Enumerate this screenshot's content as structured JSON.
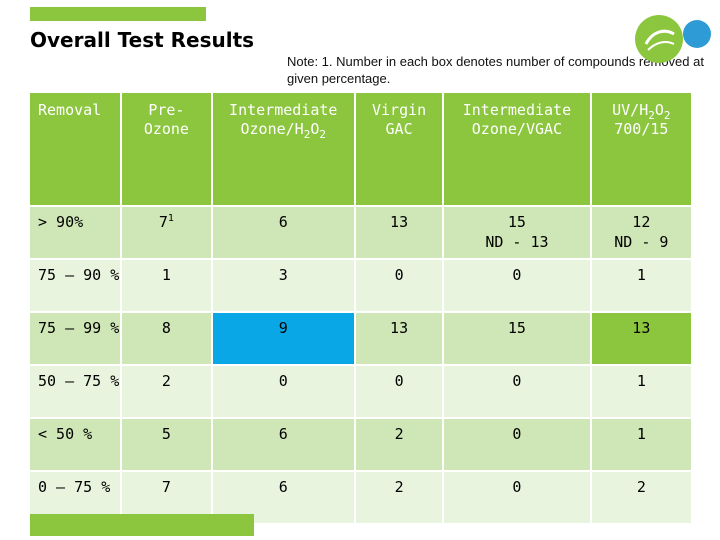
{
  "title": "Overall Test Results",
  "note": "Note: 1. Number in each box denotes number of compounds removed at given percentage.",
  "colors": {
    "green": "#8cc63f",
    "blue": "#0aa7e6",
    "row_dark": "#cfe6b6",
    "row_light": "#e9f4df"
  },
  "logo_icon": "suez-leaf-logo",
  "table": {
    "headers": {
      "removal": "Removal",
      "pre_ozone": [
        "Pre-",
        "Ozone"
      ],
      "int_ozone_h2o2": [
        "Intermediate",
        "Ozone/H",
        "2",
        "O",
        "2"
      ],
      "virgin_gac": [
        "Virgin",
        "GAC"
      ],
      "int_ozone_vgac": [
        "Intermediate",
        "Ozone/VGAC"
      ],
      "uv_h2o2": [
        "UV/H",
        "2",
        "O",
        "2",
        "700/15"
      ]
    },
    "rows": [
      {
        "label": "> 90%",
        "pre": "7",
        "pre_sup": "1",
        "io3": "6",
        "gac": "13",
        "iov": [
          "15",
          "ND - 13"
        ],
        "uv": [
          "12",
          "ND - 9"
        ]
      },
      {
        "label": "75 – 90 %",
        "pre": "1",
        "io3": "3",
        "gac": "0",
        "iov": [
          "0"
        ],
        "uv": [
          "1"
        ]
      },
      {
        "label": "75 – 99 %",
        "pre": "8",
        "io3": "9",
        "gac": "13",
        "iov": [
          "15"
        ],
        "uv": [
          "13"
        ]
      },
      {
        "label": "50 – 75 %",
        "pre": "2",
        "io3": "0",
        "gac": "0",
        "iov": [
          "0"
        ],
        "uv": [
          "1"
        ]
      },
      {
        "label": "< 50 %",
        "pre": "5",
        "io3": "6",
        "gac": "2",
        "iov": [
          "0"
        ],
        "uv": [
          "1"
        ]
      },
      {
        "label": "0 – 75 %",
        "pre": "7",
        "io3": "6",
        "gac": "2",
        "iov": [
          "0"
        ],
        "uv": [
          "2"
        ]
      }
    ]
  }
}
